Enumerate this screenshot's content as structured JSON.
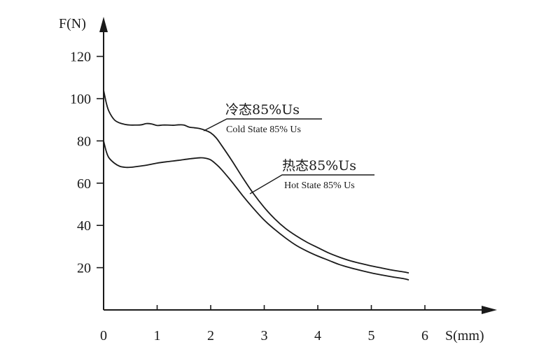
{
  "chart_data": {
    "type": "line",
    "xlabel": "S(mm)",
    "ylabel": "F(N)",
    "xlim": [
      0,
      6
    ],
    "ylim": [
      0,
      120
    ],
    "x_ticks": [
      "0",
      "1",
      "2",
      "3",
      "4",
      "5",
      "6"
    ],
    "y_ticks": [
      "20",
      "40",
      "60",
      "80",
      "100",
      "120"
    ],
    "grid": false,
    "line_color": "#1a1a1a",
    "series": [
      {
        "name_cn": "冷态85%Us",
        "name_en": "Cold State 85% Us",
        "x": [
          0,
          0.05,
          0.1,
          0.2,
          0.3,
          0.4,
          0.5,
          0.6,
          0.7,
          0.8,
          0.9,
          1.0,
          1.1,
          1.2,
          1.3,
          1.4,
          1.5,
          1.6,
          1.7,
          1.8,
          1.9,
          2.0,
          2.1,
          2.2,
          2.4,
          2.6,
          2.8,
          3.0,
          3.2,
          3.4,
          3.6,
          3.8,
          4.0,
          4.2,
          4.4,
          4.6,
          4.8,
          5.0,
          5.2,
          5.4,
          5.6,
          5.7
        ],
        "y": [
          104,
          98,
          94,
          90,
          88.5,
          87.8,
          87.5,
          87.5,
          87.6,
          88.2,
          88,
          87.3,
          87.5,
          87.5,
          87.4,
          87.6,
          87.5,
          86.5,
          86.2,
          85.8,
          85,
          83.8,
          81.5,
          78,
          70.5,
          62.5,
          55,
          48.5,
          43,
          38.5,
          35,
          32,
          29.5,
          27,
          25,
          23.3,
          22,
          20.8,
          19.8,
          18.8,
          18,
          17.5
        ]
      },
      {
        "name_cn": "热态85%Us",
        "name_en": "Hot State 85% Us",
        "x": [
          0,
          0.05,
          0.1,
          0.2,
          0.3,
          0.4,
          0.5,
          0.6,
          0.8,
          1.0,
          1.2,
          1.4,
          1.6,
          1.8,
          1.9,
          2.0,
          2.1,
          2.2,
          2.4,
          2.6,
          2.8,
          3.0,
          3.2,
          3.4,
          3.6,
          3.8,
          4.0,
          4.2,
          4.4,
          4.6,
          4.8,
          5.0,
          5.2,
          5.4,
          5.6,
          5.7
        ],
        "y": [
          80,
          75,
          72,
          69.5,
          68,
          67.5,
          67.5,
          67.8,
          68.5,
          69.5,
          70.2,
          70.8,
          71.5,
          72,
          71.8,
          71,
          69,
          66.5,
          60.5,
          54,
          48,
          42.5,
          38,
          34,
          30.5,
          27.8,
          25.5,
          23.5,
          21.5,
          20,
          18.7,
          17.5,
          16.5,
          15.6,
          14.8,
          14.2
        ]
      }
    ]
  }
}
